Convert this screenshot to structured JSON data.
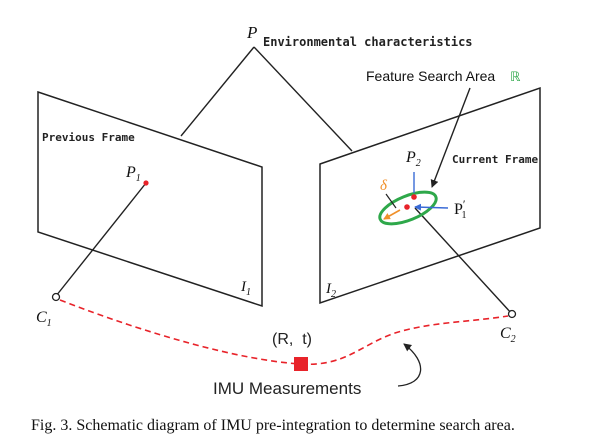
{
  "diagram": {
    "point_p": {
      "symbol": "P",
      "label": "Environmental characteristics"
    },
    "feature_search_area": {
      "label": "Feature Search Area",
      "symbol": "ℝ"
    },
    "previous_frame": {
      "label": "Previous Frame",
      "image_label": "I",
      "image_sub": "1",
      "point_label": "P",
      "point_sub": "1"
    },
    "current_frame": {
      "label": "Current Frame",
      "image_label": "I",
      "image_sub": "2",
      "point_label": "P",
      "point_sub": "2",
      "projected_label": "P",
      "projected_sup": "′",
      "projected_sub": "1",
      "offset_label": "δ"
    },
    "camera_1": {
      "label": "C",
      "sub": "1"
    },
    "camera_2": {
      "label": "C",
      "sub": "2"
    },
    "transform_label": "(R,  t)",
    "imu_label": "IMU Measurements",
    "colors": {
      "trajectory": "#e8232a",
      "ellipse": "#2ea84a",
      "point": "#e8232a",
      "arrow_blue": "#3a6bd6",
      "arrow_orange": "#f0902a",
      "line": "#222222"
    }
  },
  "caption": "Fig. 3. Schematic diagram of IMU pre-integration to determine search area."
}
